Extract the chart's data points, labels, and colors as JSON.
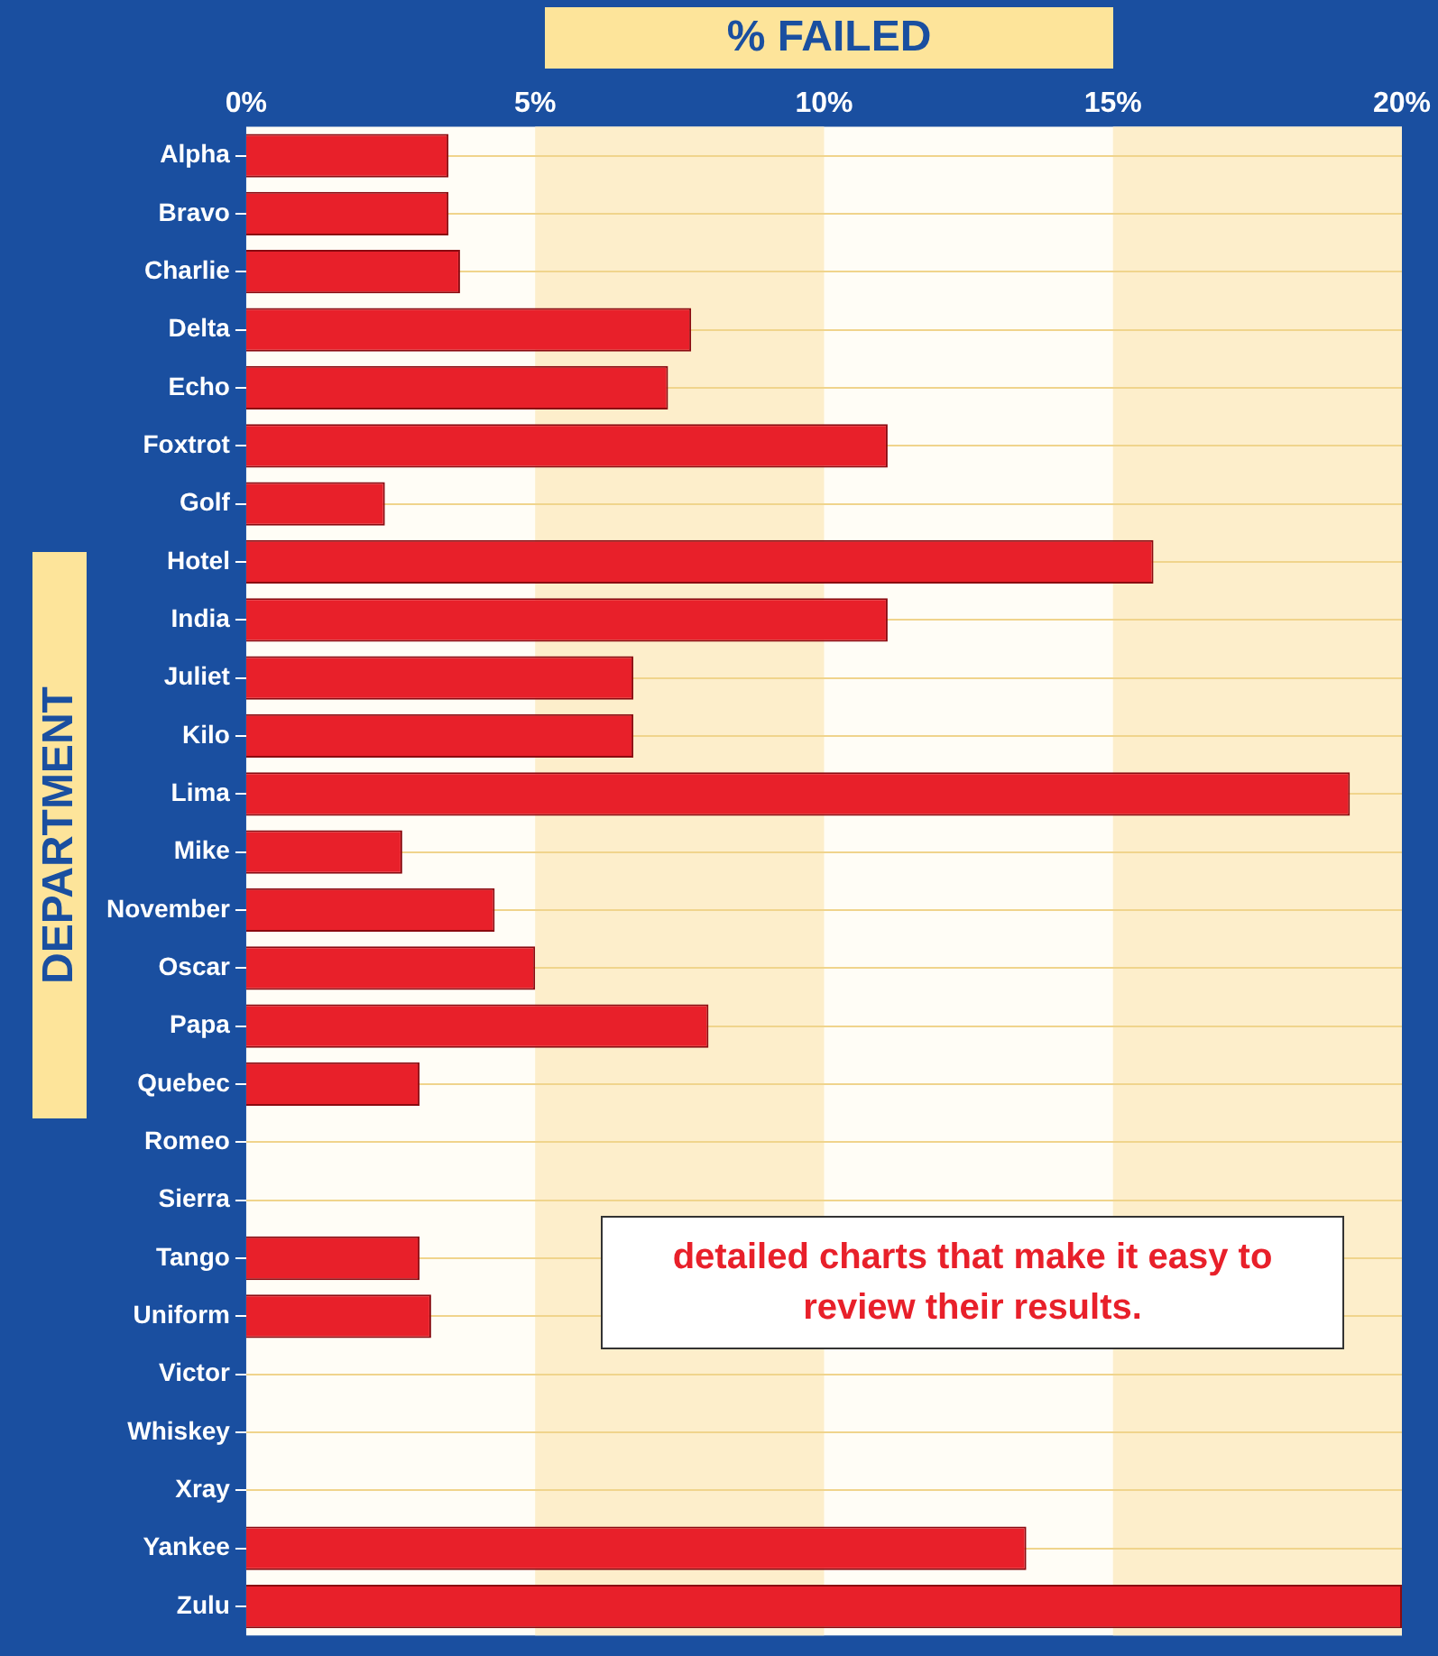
{
  "chart_data": {
    "type": "bar",
    "orientation": "horizontal",
    "title": "% FAILED",
    "ylabel": "DEPARTMENT",
    "categories": [
      "Alpha",
      "Bravo",
      "Charlie",
      "Delta",
      "Echo",
      "Foxtrot",
      "Golf",
      "Hotel",
      "India",
      "Juliet",
      "Kilo",
      "Lima",
      "Mike",
      "November",
      "Oscar",
      "Papa",
      "Quebec",
      "Romeo",
      "Sierra",
      "Tango",
      "Uniform",
      "Victor",
      "Whiskey",
      "Xray",
      "Yankee",
      "Zulu"
    ],
    "values": [
      3.5,
      3.5,
      3.7,
      7.7,
      7.3,
      11.1,
      2.4,
      15.7,
      11.1,
      6.7,
      6.7,
      19.1,
      2.7,
      4.3,
      5.0,
      8.0,
      3.0,
      0,
      0,
      3.0,
      3.2,
      0,
      0,
      0,
      13.5,
      20.0
    ],
    "color": "#e8202a",
    "xlim": [
      0,
      20
    ],
    "xticks": [
      {
        "value": 0,
        "label": "0%"
      },
      {
        "value": 5,
        "label": "5%"
      },
      {
        "value": 10,
        "label": "10%"
      },
      {
        "value": 15,
        "label": "15%"
      },
      {
        "value": 20,
        "label": "20%"
      }
    ],
    "grid": "y",
    "bands": [
      {
        "axis": "x",
        "from": 5,
        "to": 10,
        "color": "#fdeecb"
      },
      {
        "axis": "x",
        "from": 15,
        "to": 20,
        "color": "#fdeecb"
      }
    ],
    "annotations": [
      "detailed charts that make it easy to review their results."
    ]
  }
}
